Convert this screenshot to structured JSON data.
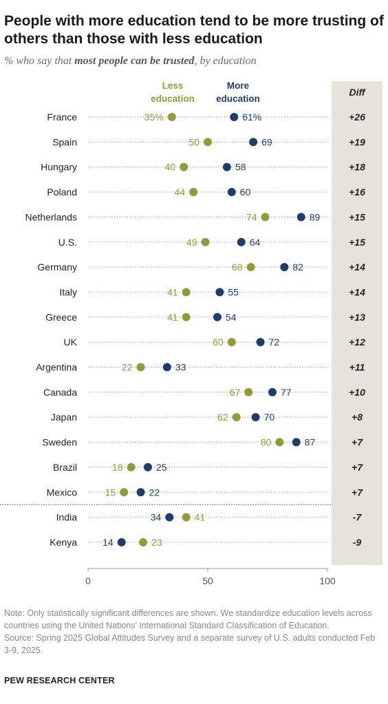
{
  "title": "People with more education tend to be more trusting of others than those with less education",
  "subtitle": {
    "prefix": "% who say that ",
    "emphasis": "most people can be trusted",
    "suffix": ", by education"
  },
  "colors": {
    "less": "#949a3c",
    "more": "#1f3d6b",
    "diff_panel": "#e8e3da",
    "dots_line": "#9a9a9a",
    "axis": "#999999"
  },
  "notes": {
    "note": "Note: Only statistically significant differences are shown. We standardize education levels across countries using the United Nations’ International Standard Classification of Education.",
    "source": "Source: Spring 2025 Global Attitudes Survey and a separate survey of U.S. adults conducted Feb 3-9, 2025."
  },
  "source_org": "PEW RESEARCH CENTER",
  "chart_data": {
    "type": "scatter",
    "subtype": "dot-plot",
    "legend": [
      "Less education",
      "More education"
    ],
    "diff_header": "Diff",
    "xlim": [
      0,
      100
    ],
    "xticks": [
      0,
      50,
      100
    ],
    "separator_after_index": 15,
    "rows": [
      {
        "country": "France",
        "less": 35,
        "more": 61,
        "less_label": "35%",
        "more_label": "61%",
        "diff": "+26"
      },
      {
        "country": "Spain",
        "less": 50,
        "more": 69,
        "less_label": "50",
        "more_label": "69",
        "diff": "+19"
      },
      {
        "country": "Hungary",
        "less": 40,
        "more": 58,
        "less_label": "40",
        "more_label": "58",
        "diff": "+18"
      },
      {
        "country": "Poland",
        "less": 44,
        "more": 60,
        "less_label": "44",
        "more_label": "60",
        "diff": "+16"
      },
      {
        "country": "Netherlands",
        "less": 74,
        "more": 89,
        "less_label": "74",
        "more_label": "89",
        "diff": "+15"
      },
      {
        "country": "U.S.",
        "less": 49,
        "more": 64,
        "less_label": "49",
        "more_label": "64",
        "diff": "+15"
      },
      {
        "country": "Germany",
        "less": 68,
        "more": 82,
        "less_label": "68",
        "more_label": "82",
        "diff": "+14"
      },
      {
        "country": "Italy",
        "less": 41,
        "more": 55,
        "less_label": "41",
        "more_label": "55",
        "diff": "+14"
      },
      {
        "country": "Greece",
        "less": 41,
        "more": 54,
        "less_label": "41",
        "more_label": "54",
        "diff": "+13"
      },
      {
        "country": "UK",
        "less": 60,
        "more": 72,
        "less_label": "60",
        "more_label": "72",
        "diff": "+12"
      },
      {
        "country": "Argentina",
        "less": 22,
        "more": 33,
        "less_label": "22",
        "more_label": "33",
        "diff": "+11"
      },
      {
        "country": "Canada",
        "less": 67,
        "more": 77,
        "less_label": "67",
        "more_label": "77",
        "diff": "+10"
      },
      {
        "country": "Japan",
        "less": 62,
        "more": 70,
        "less_label": "62",
        "more_label": "70",
        "diff": "+8"
      },
      {
        "country": "Sweden",
        "less": 80,
        "more": 87,
        "less_label": "80",
        "more_label": "87",
        "diff": "+7"
      },
      {
        "country": "Brazil",
        "less": 18,
        "more": 25,
        "less_label": "18",
        "more_label": "25",
        "diff": "+7"
      },
      {
        "country": "Mexico",
        "less": 15,
        "more": 22,
        "less_label": "15",
        "more_label": "22",
        "diff": "+7"
      },
      {
        "country": "India",
        "less": 41,
        "more": 34,
        "less_label": "41",
        "more_label": "34",
        "diff": "-7"
      },
      {
        "country": "Kenya",
        "less": 23,
        "more": 14,
        "less_label": "23",
        "more_label": "14",
        "diff": "-9"
      }
    ]
  }
}
